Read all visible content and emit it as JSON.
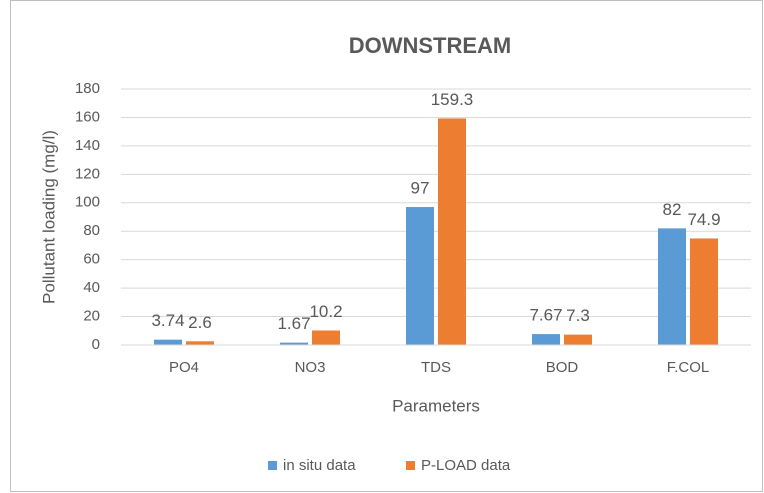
{
  "chart_data": {
    "type": "bar",
    "title": "DOWNSTREAM",
    "x_label": "Parameters",
    "y_label": "Pollutant loading (mg/l)",
    "categories": [
      "PO4",
      "NO3",
      "TDS",
      "BOD",
      "F.COL"
    ],
    "series": [
      {
        "name": "in situ data",
        "color": "#5b9bd5",
        "values": [
          3.74,
          1.67,
          97,
          7.67,
          82
        ]
      },
      {
        "name": "P-LOAD data",
        "color": "#ed7d31",
        "values": [
          2.6,
          10.2,
          159.3,
          7.3,
          74.9
        ]
      }
    ],
    "ylim": [
      0,
      180
    ],
    "yticks": [
      0,
      20,
      40,
      60,
      80,
      100,
      120,
      140,
      160,
      180
    ],
    "grid": true,
    "legend": "bottom"
  }
}
